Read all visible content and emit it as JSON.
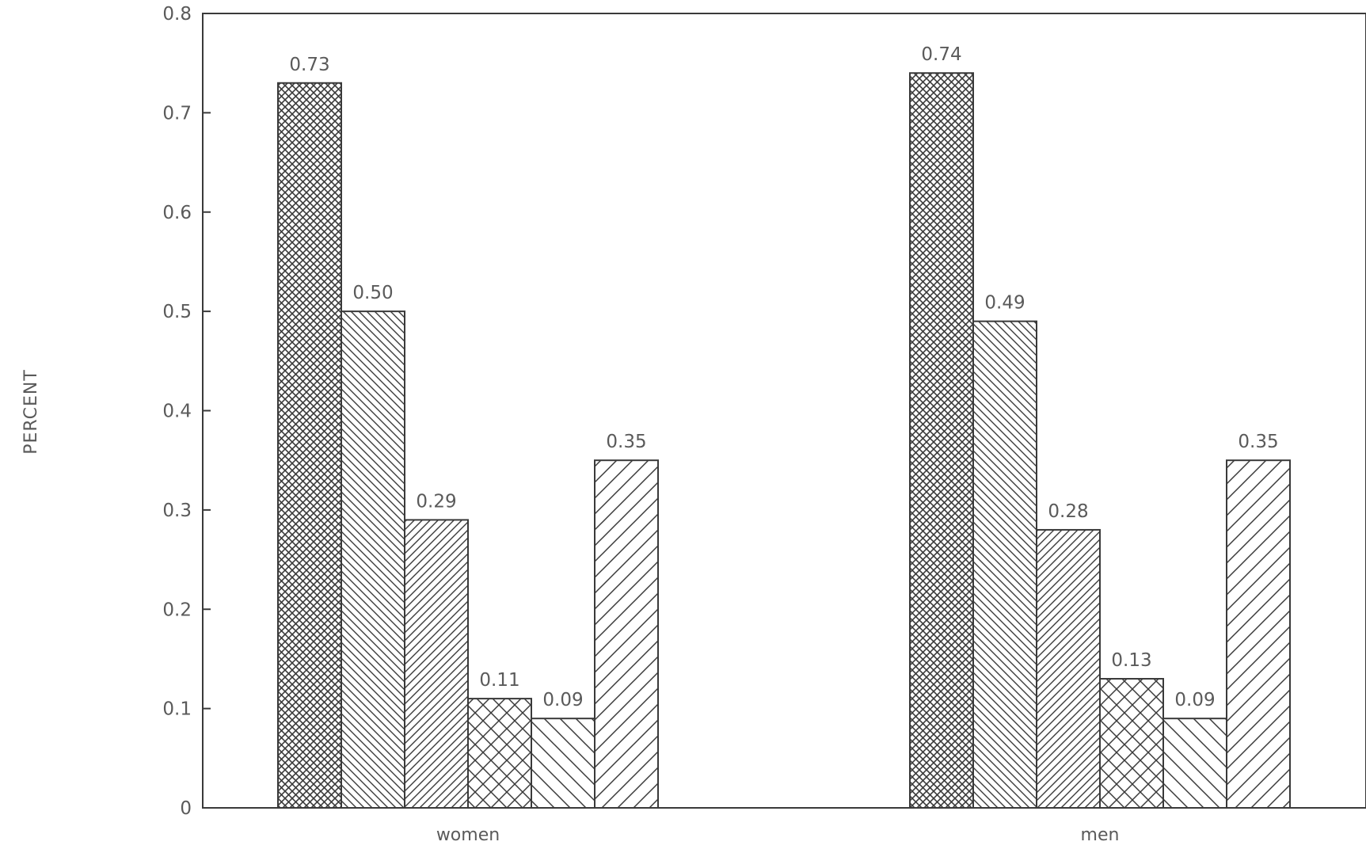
{
  "chart_data": {
    "type": "bar",
    "title": "",
    "xlabel": "",
    "ylabel": "PERCENT",
    "ylim": [
      0,
      0.8
    ],
    "yticks": [
      0,
      0.1,
      0.2,
      0.3,
      0.4,
      0.5,
      0.6,
      0.7,
      0.8
    ],
    "ytick_labels": [
      "0",
      "0.1",
      "0.2",
      "0.3",
      "0.4",
      "0.5",
      "0.6",
      "0.7",
      "0.8"
    ],
    "categories": [
      "women",
      "men"
    ],
    "series": [
      {
        "values": [
          0.73,
          0.74
        ],
        "labels": [
          "0.73",
          "0.74"
        ],
        "pattern": "dense-crosshatch"
      },
      {
        "values": [
          0.5,
          0.49
        ],
        "labels": [
          "0.50",
          "0.49"
        ],
        "pattern": "back-diagonal-dense"
      },
      {
        "values": [
          0.29,
          0.28
        ],
        "labels": [
          "0.29",
          "0.28"
        ],
        "pattern": "forward-diagonal-dense"
      },
      {
        "values": [
          0.11,
          0.13
        ],
        "labels": [
          "0.11",
          "0.13"
        ],
        "pattern": "crosshatch"
      },
      {
        "values": [
          0.09,
          0.09
        ],
        "labels": [
          "0.09",
          "0.09"
        ],
        "pattern": "back-diagonal-sparse"
      },
      {
        "values": [
          0.35,
          0.35
        ],
        "labels": [
          "0.35",
          "0.35"
        ],
        "pattern": "forward-diagonal-sparse"
      }
    ],
    "grid": false,
    "legend": "none"
  },
  "colors": {
    "ink": "#3a3a3a",
    "text": "#5a5a5a",
    "background": "#ffffff"
  }
}
